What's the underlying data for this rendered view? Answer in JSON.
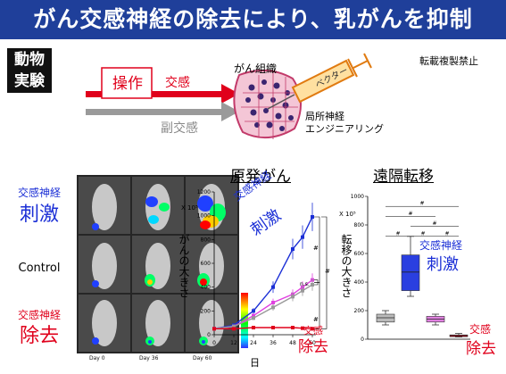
{
  "title": "がん交感神経の除去により、乳がんを抑制",
  "badge": {
    "line1": "動物",
    "line2": "実験"
  },
  "copyright": "転載複製禁止",
  "diagram": {
    "operation": "操作",
    "sympathetic": "交感",
    "parasympathetic": "副交感",
    "tissue_label": "がん組織",
    "vector_label": "ベクター",
    "engineering_line1": "局所神経",
    "engineering_line2": "エンジニアリング"
  },
  "left_labels": {
    "stim_line1": "交感神経",
    "stim_line2": "刺激",
    "control": "Control",
    "rem_line1": "交感神経",
    "rem_line2": "除去"
  },
  "image_days": [
    "Day 0",
    "Day 36",
    "Day 60"
  ],
  "charts": {
    "primary": {
      "heading": "原発がん",
      "ylabel": "がんの大きさ",
      "yunit": "X 10⁵",
      "xlabel": "日",
      "label_stim_1": "交感神経",
      "label_stim_2": "刺激",
      "label_rem_1": "交感",
      "label_rem_2": "除去",
      "ns": "n.s.",
      "hash": "#"
    },
    "metastasis": {
      "heading": "遠隔転移",
      "ylabel": "転移の大きさ",
      "yunit": "X 10⁵",
      "label_stim_1": "交感神経",
      "label_stim_2": "刺激",
      "label_rem_1": "交感",
      "label_rem_2": "除去",
      "hash": "#"
    }
  },
  "colors": {
    "title_bg": "#1f3f9a",
    "red": "#e0001b",
    "blue": "#1b2fd6",
    "magenta": "#e040e0",
    "gray": "#999999"
  },
  "chart_data": [
    {
      "type": "line",
      "x": [
        0,
        12,
        24,
        36,
        48,
        54,
        60
      ],
      "ylim": [
        0,
        1200
      ],
      "yticks": [
        0,
        200,
        400,
        600,
        800,
        1000,
        1200
      ],
      "xticks": [
        0,
        12,
        24,
        36,
        48,
        60
      ],
      "series": [
        {
          "name": "交感神経刺激",
          "color": "#1b2fd6",
          "values": [
            50,
            80,
            200,
            400,
            720,
            820,
            990
          ]
        },
        {
          "name": "",
          "color": "#e040e0",
          "values": [
            50,
            70,
            160,
            270,
            340,
            400,
            460
          ]
        },
        {
          "name": "",
          "color": "#999999",
          "values": [
            50,
            70,
            140,
            230,
            320,
            370,
            420
          ]
        },
        {
          "name": "交感除去",
          "color": "#e0001b",
          "values": [
            50,
            50,
            60,
            60,
            60,
            55,
            50
          ]
        }
      ]
    },
    {
      "type": "box",
      "ylim": [
        0,
        1000
      ],
      "yticks": [
        0,
        200,
        400,
        600,
        800,
        1000
      ],
      "boxes": [
        {
          "name": "",
          "color": "#bbbbbb",
          "min": 100,
          "q1": 120,
          "median": 150,
          "q3": 175,
          "max": 200
        },
        {
          "name": "交感神経刺激",
          "color": "#2a3fe0",
          "min": 300,
          "q1": 340,
          "median": 470,
          "q3": 590,
          "max": 720
        },
        {
          "name": "",
          "color": "#e080e0",
          "min": 100,
          "q1": 120,
          "median": 140,
          "q3": 160,
          "max": 175
        },
        {
          "name": "交感除去",
          "color": "#e0001b",
          "min": 15,
          "q1": 20,
          "median": 25,
          "q3": 30,
          "max": 40
        }
      ]
    }
  ]
}
